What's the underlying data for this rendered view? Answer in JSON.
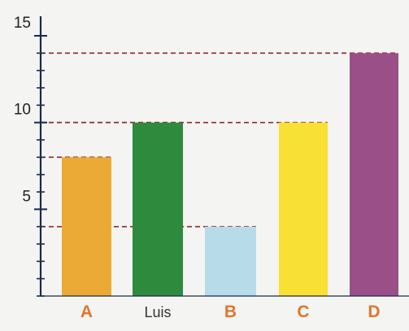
{
  "chart_data": {
    "type": "bar",
    "categories": [
      "A",
      "Luis",
      "B",
      "C",
      "D"
    ],
    "values": [
      8,
      10,
      4,
      10,
      14
    ],
    "yticks": [
      5,
      10,
      15
    ],
    "ylim": [
      0,
      15
    ],
    "minor_tick_step": 1,
    "guide_lines": "dashed lines from each bar top to the axis",
    "grid": false,
    "bar_colors": [
      "#eba935",
      "#2e8b3e",
      "#b7dbe8",
      "#f8e035",
      "#9a4f88"
    ],
    "label_colors": [
      "#e0772a",
      "#333333",
      "#e0772a",
      "#e0772a",
      "#e0772a"
    ],
    "guide_color": "#8b2a2a",
    "axis_color": "#1a2a4a"
  }
}
